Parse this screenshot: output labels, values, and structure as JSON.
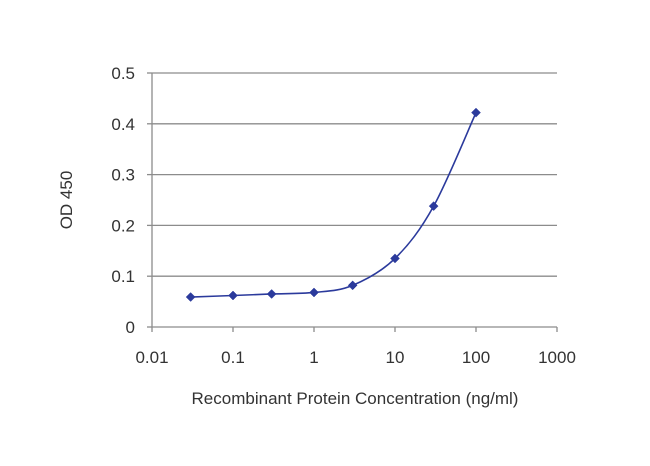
{
  "chart_data": {
    "type": "line",
    "xlabel": "Recombinant Protein Concentration (ng/ml)",
    "ylabel": "OD 450",
    "x_scale": "log",
    "xlim": [
      0.01,
      1000
    ],
    "ylim": [
      0,
      0.5
    ],
    "x_ticks": [
      "0.01",
      "0.1",
      "1",
      "10",
      "100",
      "1000"
    ],
    "y_ticks": [
      "0",
      "0.1",
      "0.2",
      "0.3",
      "0.4",
      "0.5"
    ],
    "grid": "horizontal",
    "series": [
      {
        "x": [
          0.03,
          0.1,
          0.3,
          1,
          3,
          10,
          30,
          100
        ],
        "y": [
          0.059,
          0.062,
          0.065,
          0.068,
          0.082,
          0.135,
          0.238,
          0.422
        ],
        "color": "#2b3a9c",
        "marker": "diamond"
      }
    ]
  }
}
